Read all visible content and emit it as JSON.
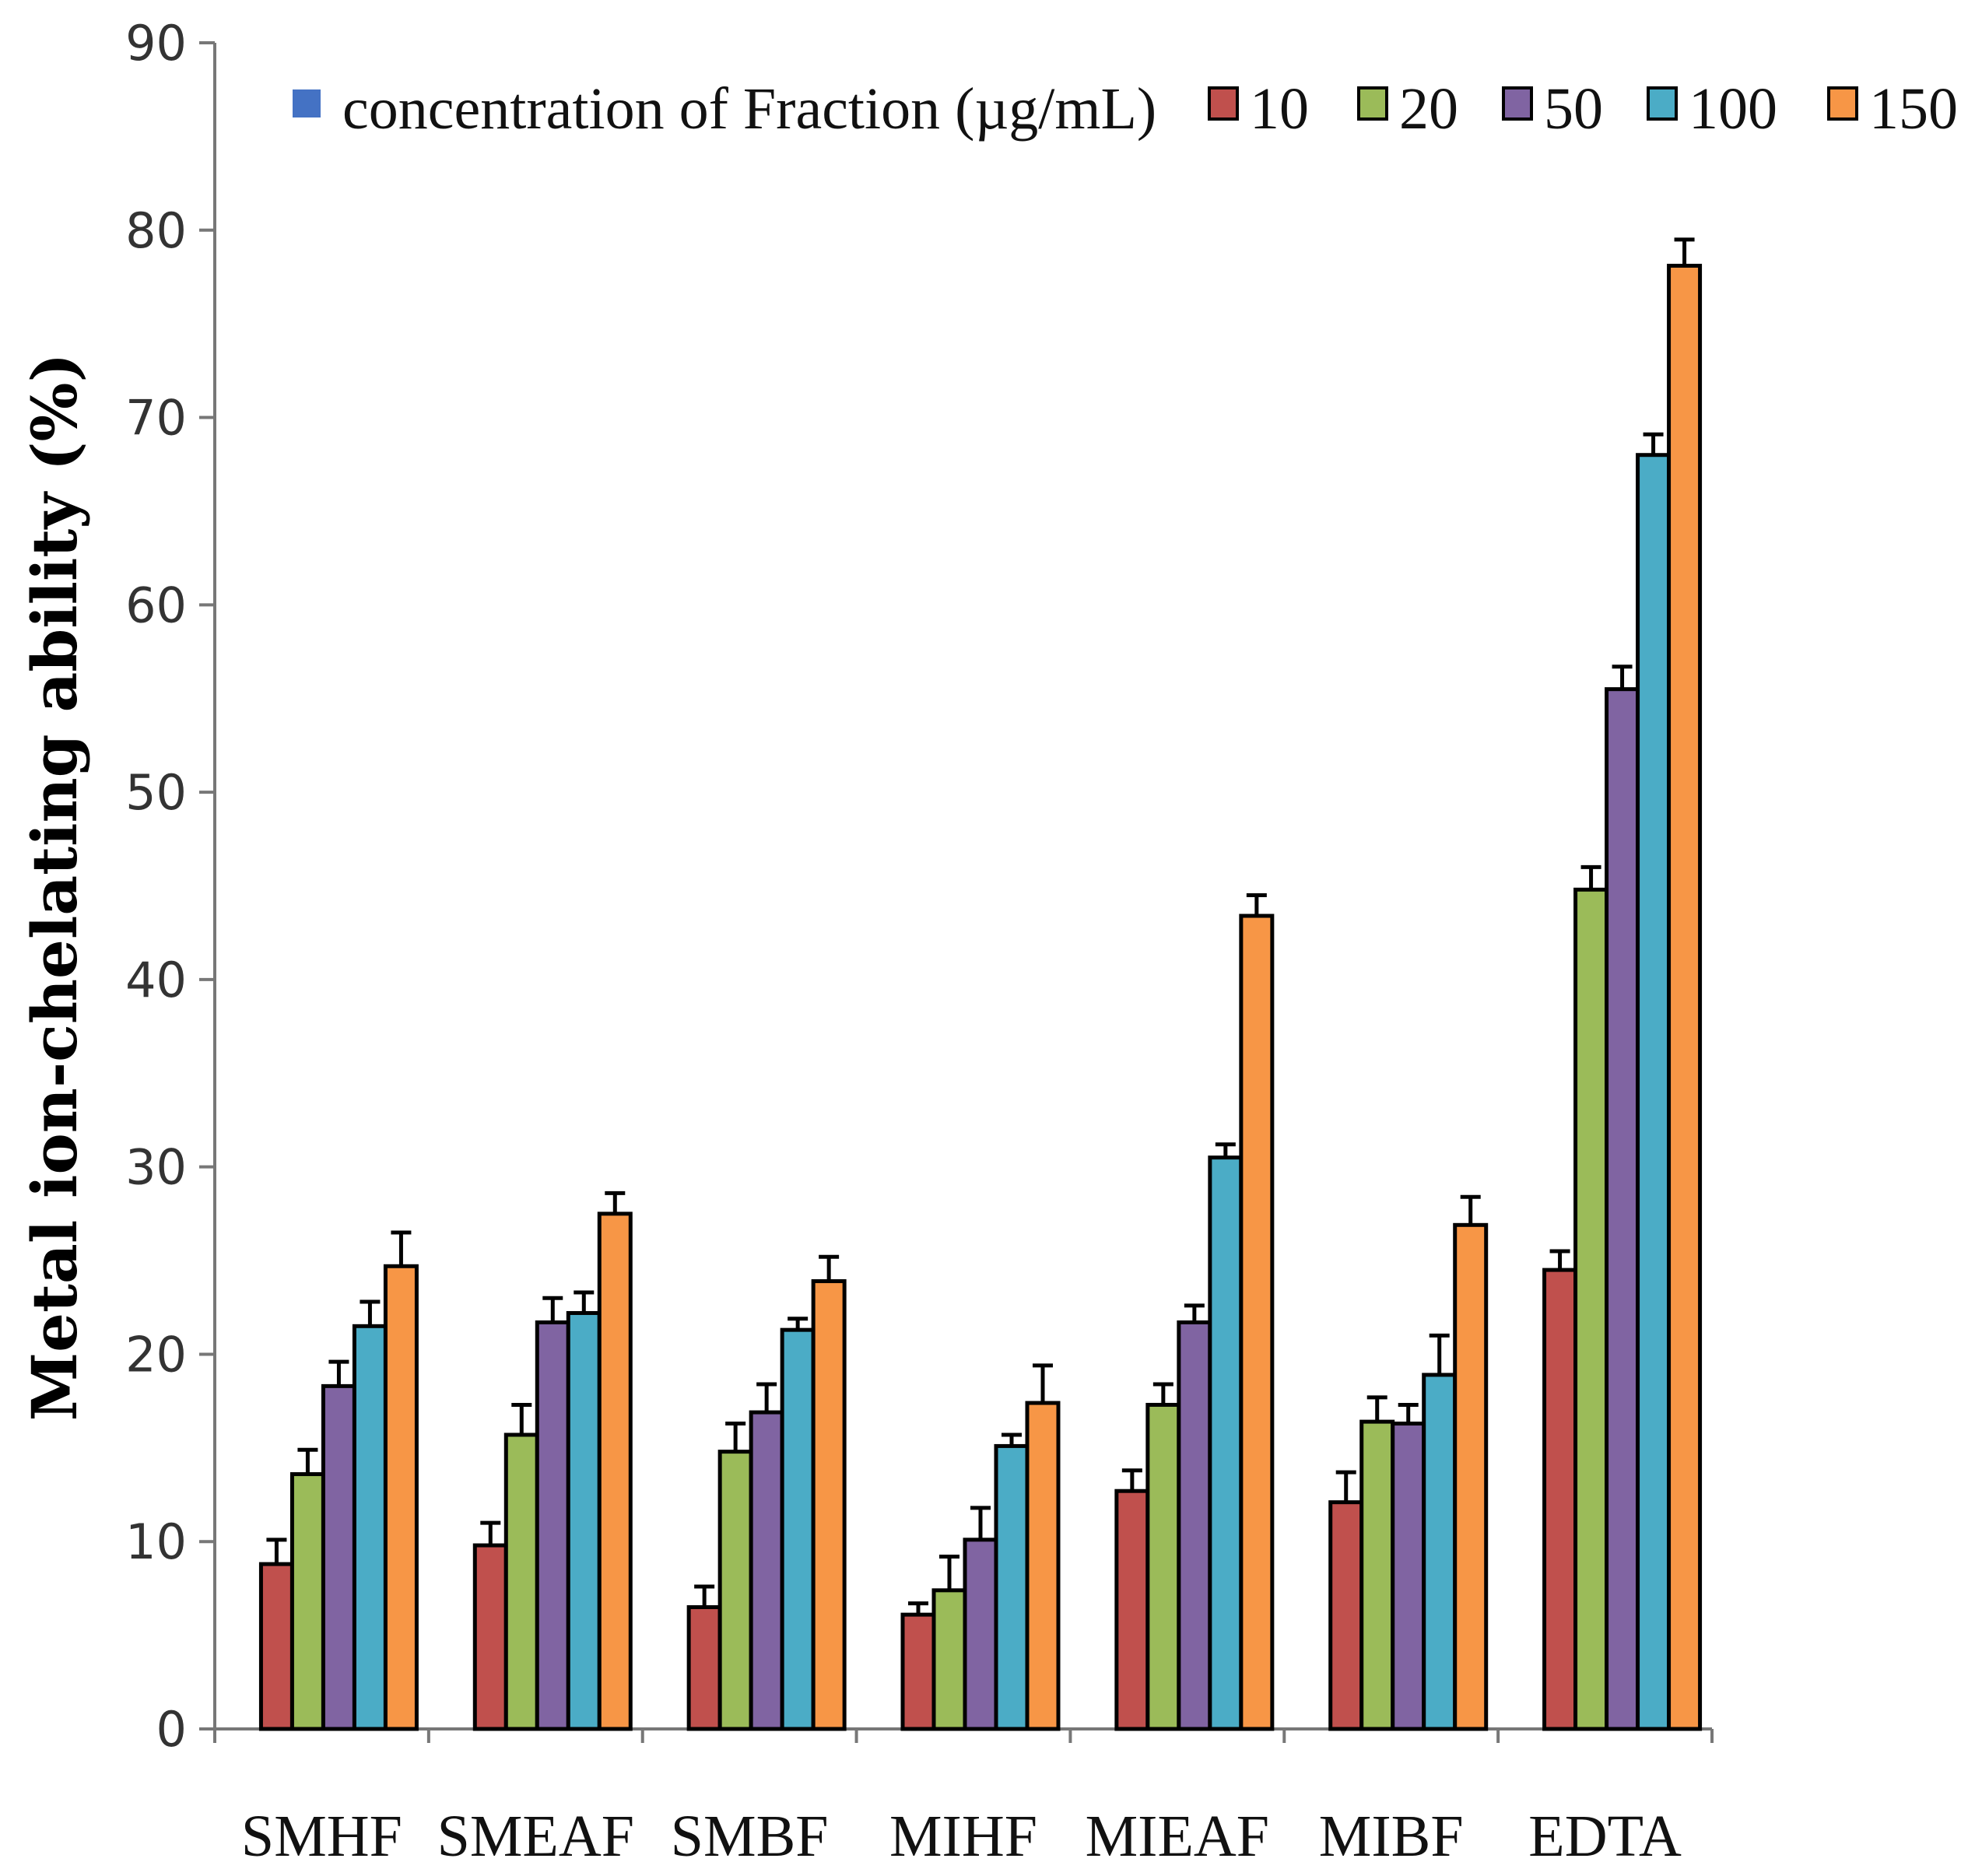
{
  "chart_data": {
    "type": "bar",
    "title": "",
    "xlabel": "",
    "ylabel": "Metal ion-chelating ability (%)",
    "ylim": [
      0,
      90
    ],
    "yticks": [
      0,
      10,
      20,
      30,
      40,
      50,
      60,
      70,
      80,
      90
    ],
    "grid": false,
    "legend_position": "top",
    "legend_title": "concentration of Fraction (µg/mL)",
    "legend_title_color": "#4472C4",
    "categories": [
      "SMHF",
      "SMEAF",
      "SMBF",
      "MIHF",
      "MIEAF",
      "MIBF",
      "EDTA"
    ],
    "series": [
      {
        "name": "10",
        "color": "#C0504D",
        "values": [
          8.8,
          9.8,
          6.5,
          6.1,
          12.7,
          12.1,
          24.5
        ],
        "errors": [
          1.3,
          1.2,
          1.1,
          0.6,
          1.1,
          1.6,
          1.0
        ]
      },
      {
        "name": "20",
        "color": "#9BBB59",
        "values": [
          13.6,
          15.7,
          14.8,
          7.4,
          17.3,
          16.4,
          44.8
        ],
        "errors": [
          1.3,
          1.6,
          1.5,
          1.8,
          1.1,
          1.3,
          1.2
        ]
      },
      {
        "name": "50",
        "color": "#8064A2",
        "values": [
          18.3,
          21.7,
          16.9,
          10.1,
          21.7,
          16.3,
          55.5
        ],
        "errors": [
          1.3,
          1.3,
          1.5,
          1.7,
          0.9,
          1.0,
          1.2
        ]
      },
      {
        "name": "100",
        "color": "#4BACC6",
        "values": [
          21.5,
          22.2,
          21.3,
          15.1,
          30.5,
          18.9,
          68.0
        ],
        "errors": [
          1.3,
          1.1,
          0.6,
          0.6,
          0.7,
          2.1,
          1.1
        ]
      },
      {
        "name": "150",
        "color": "#F79646",
        "values": [
          24.7,
          27.5,
          23.9,
          17.4,
          43.4,
          26.9,
          78.1
        ],
        "errors": [
          1.8,
          1.1,
          1.3,
          2.0,
          1.1,
          1.5,
          1.4
        ]
      }
    ]
  }
}
